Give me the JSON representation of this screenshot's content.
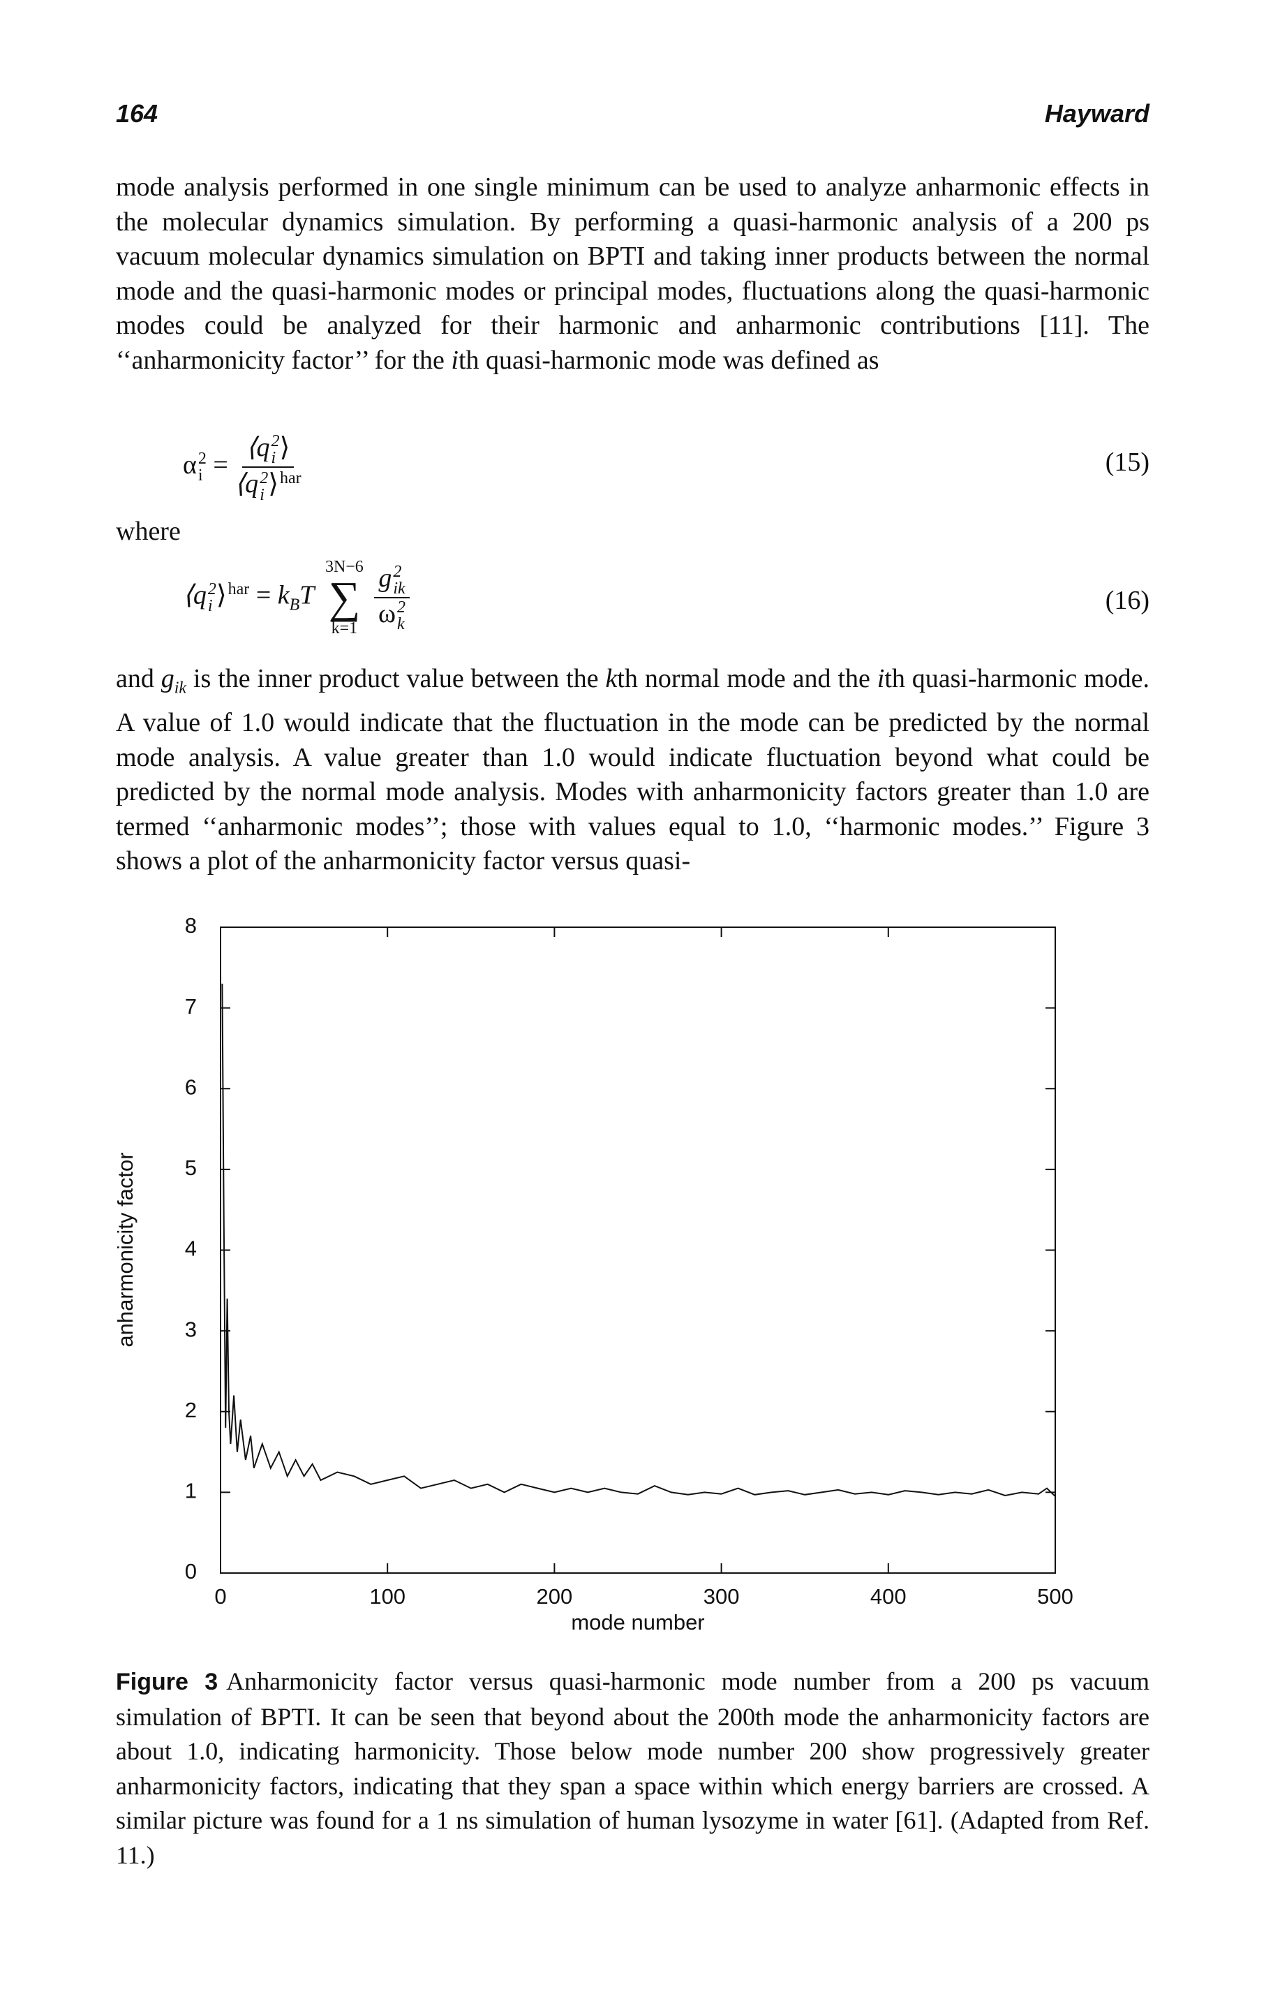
{
  "header": {
    "page_number": "164",
    "author": "Hayward"
  },
  "paragraphs": [
    [
      "mode analysis performed in one single minimum can be used to analyze anharmonic effects in the molecular dynamics simulation. By performing a quasi-harmonic analysis of a 200 ps vacuum molecular dynamics simulation on BPTI and taking inner products between the normal mode and the quasi-harmonic modes or principal modes, fluctuations along the quasi-harmonic modes could be analyzed for their harmonic and anharmonic contributions [11]. The ‘‘anharmonicity factor’’ for the ",
      "i",
      "th quasi-harmonic mode was defined as"
    ],
    [
      "where"
    ],
    [
      "and ",
      "g",
      "ik",
      " is the inner product value between the ",
      "k",
      "th normal mode and the ",
      "i",
      "th quasi-harmonic mode. A value of 1.0 would indicate that the fluctuation in the mode can be predicted by the normal mode analysis. A value greater than 1.0 would indicate fluctuation beyond what could be predicted by the normal mode analysis. Modes with anharmonicity factors greater than 1.0 are termed ‘‘anharmonic modes’’; those with values equal to 1.0, ‘‘harmonic modes.’’ Figure 3 shows a plot of the anharmonicity factor versus quasi-"
    ]
  ],
  "equations": [
    {
      "lhs": "α",
      "lhs_sup": "2",
      "lhs_sub": "i",
      "eq": "=",
      "num": "⟨q",
      "num_sup": "2",
      "num_sub": "i",
      "num_close": "⟩",
      "den": "⟨q",
      "den_sup": "2",
      "den_sub": "i",
      "den_close": "⟩",
      "den_tag": "har",
      "number": "(15)"
    },
    {
      "lhs": "⟨q",
      "lhs_sup": "2",
      "lhs_sub": "i",
      "lhs_close": "⟩",
      "lhs_tag": "har",
      "eq": "=",
      "k": "k",
      "k_sub": "B",
      "T": "T",
      "sum_upper": "3N−6",
      "sum": "∑",
      "sum_lower": "k=1",
      "num": "g",
      "num_sup": "2",
      "num_sub": "ik",
      "den": "ω",
      "den_sup": "2",
      "den_sub": "k",
      "number": "(16)"
    }
  ],
  "chart_data": {
    "type": "line",
    "xlabel": "mode number",
    "ylabel": "anharmonicity factor",
    "color": "#111111",
    "x": [
      1,
      2,
      3,
      4,
      5,
      6,
      8,
      10,
      12,
      15,
      18,
      20,
      25,
      30,
      35,
      40,
      45,
      50,
      55,
      60,
      70,
      80,
      90,
      100,
      110,
      120,
      130,
      140,
      150,
      160,
      170,
      180,
      190,
      200,
      210,
      220,
      230,
      240,
      250,
      260,
      270,
      280,
      290,
      300,
      310,
      320,
      330,
      340,
      350,
      360,
      370,
      380,
      390,
      400,
      410,
      420,
      430,
      440,
      450,
      460,
      470,
      480,
      490,
      495,
      500
    ],
    "values": [
      7.3,
      4.3,
      1.8,
      3.4,
      2.0,
      1.6,
      2.2,
      1.5,
      1.9,
      1.4,
      1.7,
      1.3,
      1.6,
      1.3,
      1.5,
      1.2,
      1.4,
      1.2,
      1.35,
      1.15,
      1.25,
      1.2,
      1.1,
      1.15,
      1.2,
      1.05,
      1.1,
      1.15,
      1.05,
      1.1,
      1.0,
      1.1,
      1.05,
      1.0,
      1.05,
      1.0,
      1.05,
      1.0,
      0.98,
      1.08,
      1.0,
      0.97,
      1.0,
      0.98,
      1.05,
      0.97,
      1.0,
      1.02,
      0.97,
      1.0,
      1.03,
      0.98,
      1.0,
      0.97,
      1.02,
      1.0,
      0.97,
      1.0,
      0.98,
      1.03,
      0.96,
      1.0,
      0.98,
      1.05,
      0.95
    ],
    "xlim": [
      0,
      500
    ],
    "ylim": [
      0,
      8
    ],
    "xticks": [
      0,
      100,
      200,
      300,
      400,
      500
    ],
    "yticks": [
      0,
      1,
      2,
      3,
      4,
      5,
      6,
      7,
      8
    ],
    "grid": false
  },
  "caption": {
    "label": "Figure 3",
    "text": "Anharmonicity factor versus quasi-harmonic mode number from a 200 ps vacuum simulation of BPTI. It can be seen that beyond about the 200th mode the anharmonicity factors are about 1.0, indicating harmonicity. Those below mode number 200 show progressively greater anharmonicity factors, indicating that they span a space within which energy barriers are crossed. A similar picture was found for a 1 ns simulation of human lysozyme in water [61]. (Adapted from Ref. 11.)"
  }
}
